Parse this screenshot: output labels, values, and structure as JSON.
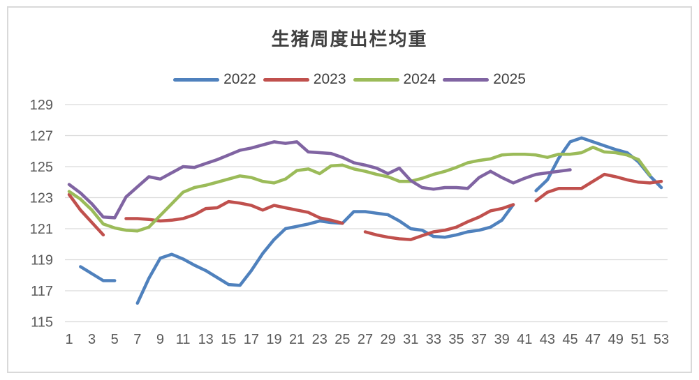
{
  "chart": {
    "title": "生猪周度出栏均重"
  },
  "chart_data": {
    "type": "line",
    "title": "生猪周度出栏均重",
    "xlabel": "",
    "ylabel": "",
    "x_unit": "week",
    "x_ticks": [
      1,
      3,
      5,
      7,
      9,
      11,
      13,
      15,
      17,
      19,
      21,
      23,
      25,
      27,
      29,
      31,
      33,
      35,
      37,
      39,
      41,
      43,
      45,
      47,
      49,
      51,
      53
    ],
    "y_ticks": [
      115,
      117,
      119,
      121,
      123,
      125,
      127,
      129
    ],
    "ylim": [
      115,
      129
    ],
    "xlim": [
      1,
      53
    ],
    "grid": "horizontal",
    "grid_color": "#D9D9D9",
    "axis_text_color": "#595959",
    "legend_position": "top-center",
    "series": [
      {
        "name": "2022",
        "color": "#4F81BD",
        "values": [
          null,
          118.55,
          118.1,
          117.65,
          117.65,
          null,
          116.2,
          117.8,
          119.1,
          119.35,
          119.05,
          118.65,
          118.3,
          117.85,
          117.4,
          117.35,
          118.3,
          119.4,
          120.3,
          121.0,
          121.15,
          121.3,
          121.5,
          121.4,
          121.35,
          122.1,
          122.1,
          122.0,
          121.9,
          121.5,
          121.0,
          120.9,
          120.5,
          120.45,
          120.6,
          120.8,
          120.9,
          121.1,
          121.55,
          122.55,
          null,
          123.45,
          124.15,
          125.55,
          126.6,
          126.85,
          126.6,
          126.35,
          126.1,
          125.9,
          125.3,
          124.4,
          123.65
        ]
      },
      {
        "name": "2023",
        "color": "#C0504D",
        "values": [
          123.2,
          122.2,
          121.4,
          120.6,
          null,
          121.65,
          121.65,
          121.6,
          121.5,
          121.55,
          121.65,
          121.9,
          122.3,
          122.35,
          122.75,
          122.65,
          122.5,
          122.2,
          122.5,
          122.35,
          122.2,
          122.05,
          121.7,
          121.55,
          121.35,
          null,
          120.8,
          120.6,
          120.45,
          120.35,
          120.3,
          120.55,
          120.8,
          120.9,
          121.1,
          121.45,
          121.75,
          122.15,
          122.3,
          122.55,
          null,
          122.8,
          123.35,
          123.6,
          123.6,
          123.6,
          124.05,
          124.5,
          124.35,
          124.15,
          124.0,
          123.95,
          124.05
        ]
      },
      {
        "name": "2024",
        "color": "#9BBB59",
        "values": [
          123.4,
          122.9,
          122.2,
          121.3,
          121.05,
          120.9,
          120.85,
          121.1,
          121.85,
          122.6,
          123.35,
          123.65,
          123.8,
          124.0,
          124.2,
          124.4,
          124.3,
          124.05,
          123.95,
          124.2,
          124.75,
          124.85,
          124.55,
          125.05,
          125.1,
          124.85,
          124.7,
          124.5,
          124.35,
          124.05,
          124.05,
          124.25,
          124.5,
          124.7,
          124.95,
          125.25,
          125.4,
          125.5,
          125.75,
          125.8,
          125.8,
          125.75,
          125.6,
          125.8,
          125.8,
          125.9,
          126.25,
          125.95,
          125.9,
          125.75,
          125.45,
          124.45,
          null
        ]
      },
      {
        "name": "2025",
        "color": "#8064A2",
        "values": [
          123.85,
          123.3,
          122.6,
          121.75,
          121.7,
          123.05,
          123.7,
          124.35,
          124.2,
          124.6,
          125.0,
          124.95,
          125.2,
          125.45,
          125.75,
          126.05,
          126.2,
          126.4,
          126.6,
          126.5,
          126.6,
          125.95,
          125.9,
          125.85,
          125.6,
          125.25,
          125.1,
          124.9,
          124.55,
          124.9,
          124.1,
          123.65,
          123.55,
          123.65,
          123.65,
          123.6,
          124.3,
          124.7,
          124.3,
          123.95,
          124.25,
          124.5,
          124.6,
          124.7,
          124.8,
          null,
          null,
          null,
          null,
          null,
          null,
          null,
          null
        ]
      }
    ]
  }
}
